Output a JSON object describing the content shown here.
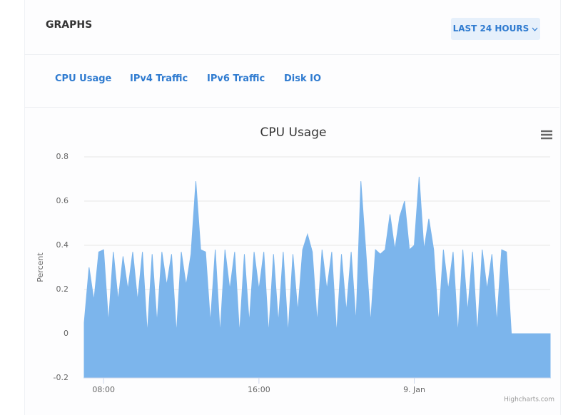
{
  "header": {
    "title": "GRAPHS",
    "range_button": "LAST 24 HOURS"
  },
  "tabs": [
    "CPU Usage",
    "IPv4 Traffic",
    "IPv6 Traffic",
    "Disk IO"
  ],
  "chart_data": {
    "type": "area",
    "title": "CPU Usage",
    "y_label": "Percent",
    "credits": "Highcharts.com",
    "color": "#7cb5ec",
    "grid": true,
    "xlim": [
      7,
      31
    ],
    "xticks": [
      {
        "value": 8,
        "label": "08:00"
      },
      {
        "value": 16,
        "label": "16:00"
      },
      {
        "value": 24,
        "label": "9. Jan"
      }
    ],
    "ylim": [
      -0.2,
      0.8
    ],
    "yticks": [
      -0.2,
      0,
      0.2,
      0.4,
      0.6,
      0.8
    ],
    "x": [
      7,
      7.25,
      7.5,
      7.75,
      8,
      8.25,
      8.5,
      8.75,
      9,
      9.25,
      9.5,
      9.75,
      10,
      10.25,
      10.5,
      10.75,
      11,
      11.25,
      11.5,
      11.75,
      12,
      12.25,
      12.5,
      12.75,
      13,
      13.25,
      13.5,
      13.75,
      14,
      14.25,
      14.5,
      14.75,
      15,
      15.25,
      15.5,
      15.75,
      16,
      16.25,
      16.5,
      16.75,
      17,
      17.25,
      17.5,
      17.75,
      18,
      18.25,
      18.5,
      18.75,
      19,
      19.25,
      19.5,
      19.75,
      20,
      20.25,
      20.5,
      20.75,
      21,
      21.25,
      21.5,
      21.75,
      22,
      22.25,
      22.5,
      22.75,
      23,
      23.25,
      23.5,
      23.75,
      24,
      24.25,
      24.5,
      24.75,
      25,
      25.25,
      25.5,
      25.75,
      26,
      26.25,
      26.5,
      26.75,
      27,
      27.25,
      27.5,
      27.75,
      28,
      28.25,
      28.5,
      28.75,
      29,
      29.25,
      29.5,
      29.75,
      30,
      30.25,
      30.5,
      30.75,
      31
    ],
    "values": [
      0.05,
      0.3,
      0.15,
      0.37,
      0.38,
      0.05,
      0.37,
      0.15,
      0.35,
      0.2,
      0.37,
      0.15,
      0.37,
      0,
      0.36,
      0.05,
      0.37,
      0.22,
      0.36,
      0,
      0.37,
      0.22,
      0.36,
      0.69,
      0.38,
      0.37,
      0.05,
      0.38,
      0,
      0.38,
      0.2,
      0.37,
      0,
      0.36,
      0.05,
      0.37,
      0.2,
      0.37,
      0,
      0.36,
      0.05,
      0.37,
      0,
      0.36,
      0.1,
      0.38,
      0.45,
      0.37,
      0.05,
      0.38,
      0.2,
      0.37,
      0,
      0.36,
      0.1,
      0.37,
      0.05,
      0.69,
      0.38,
      0.05,
      0.38,
      0.36,
      0.38,
      0.54,
      0.38,
      0.53,
      0.6,
      0.38,
      0.4,
      0.71,
      0.38,
      0.52,
      0.38,
      0.05,
      0.38,
      0.2,
      0.37,
      0,
      0.38,
      0.1,
      0.37,
      0,
      0.38,
      0.2,
      0.36,
      0.05,
      0.38,
      0.37,
      0,
      0,
      0,
      0,
      0,
      0,
      0,
      0,
      0
    ]
  }
}
